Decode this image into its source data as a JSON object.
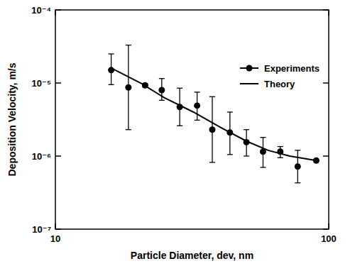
{
  "chart_data": {
    "type": "scatter",
    "x_label": "Particle Diameter, dev, nm",
    "y_label": "Deposition Velocity, m/s",
    "log": true,
    "grid": false,
    "legend": "top-right",
    "xlim": [
      10,
      100
    ],
    "ylim": [
      1e-07,
      0.0001
    ],
    "xticks": [
      10,
      100
    ],
    "yticks": [
      {
        "value": 1e-07,
        "label": "10⁻⁷"
      },
      {
        "value": 1e-06,
        "label": "10⁻⁶"
      },
      {
        "value": 1e-05,
        "label": "10⁻⁵"
      },
      {
        "value": 0.0001,
        "label": "10⁻⁴"
      }
    ],
    "series": [
      {
        "name": "Experiments",
        "type": "scatter",
        "marker": "circle",
        "color": "#000000",
        "x": [
          16,
          18.5,
          21.3,
          24.5,
          28.5,
          33,
          37.5,
          43.5,
          50,
          57.5,
          66.5,
          77,
          90
        ],
        "values": [
          1.5e-05,
          8.7e-06,
          9.3e-06,
          8e-06,
          4.7e-06,
          4.9e-06,
          2.3e-06,
          2.1e-06,
          1.55e-06,
          1.15e-06,
          1.15e-06,
          7.2e-07,
          8.7e-07
        ],
        "lower": [
          9.5e-06,
          2.3e-06,
          8.8e-06,
          5.8e-06,
          2.6e-06,
          3.1e-06,
          8.2e-07,
          1.05e-06,
          1e-06,
          7e-07,
          9.5e-07,
          4.3e-07,
          8.5e-07
        ],
        "upper": [
          2.5e-05,
          3.3e-05,
          9.8e-06,
          1.15e-05,
          8.5e-06,
          7.5e-06,
          6.5e-06,
          4e-06,
          2.3e-06,
          1.8e-06,
          1.35e-06,
          1.2e-06,
          8.9e-07
        ]
      },
      {
        "name": "Theory",
        "type": "line",
        "line_style": "solid",
        "color": "#000000",
        "x": [
          16,
          20.5,
          25,
          32,
          40,
          50,
          60,
          72,
          90
        ],
        "values": [
          1.6e-05,
          1e-05,
          6.3e-06,
          4e-06,
          2.5e-06,
          1.6e-06,
          1.2e-06,
          1e-06,
          8.7e-07
        ]
      }
    ]
  }
}
